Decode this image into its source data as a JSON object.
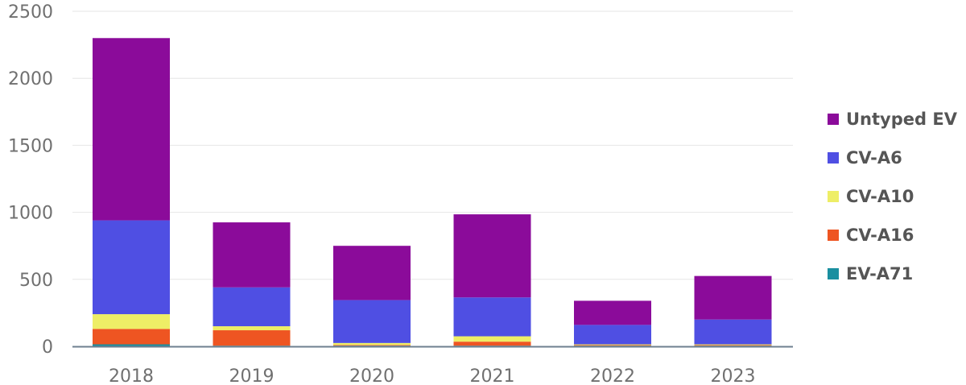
{
  "chart_data": {
    "type": "bar",
    "stacked": true,
    "categories": [
      "2018",
      "2019",
      "2020",
      "2021",
      "2022",
      "2023"
    ],
    "series": [
      {
        "name": "EV-A71",
        "color": "#1a8fa0",
        "values": [
          15,
          5,
          5,
          5,
          5,
          5
        ]
      },
      {
        "name": "CV-A16",
        "color": "#ee5522",
        "values": [
          115,
          115,
          5,
          30,
          5,
          5
        ]
      },
      {
        "name": "CV-A10",
        "color": "#eeee66",
        "values": [
          110,
          30,
          15,
          40,
          5,
          5
        ]
      },
      {
        "name": "CV-A6",
        "color": "#4f4fe3",
        "values": [
          700,
          290,
          320,
          290,
          145,
          185
        ]
      },
      {
        "name": "Untyped EV",
        "color": "#8b0b9a",
        "values": [
          1360,
          485,
          405,
          620,
          180,
          325
        ]
      }
    ],
    "yticks": [
      "0",
      "500",
      "1000",
      "1500",
      "2000",
      "2500"
    ],
    "ylim": [
      0,
      2500
    ],
    "grid": true,
    "legend_position": "right",
    "legend_order": [
      "Untyped EV",
      "CV-A6",
      "CV-A10",
      "CV-A16",
      "EV-A71"
    ],
    "title": "",
    "xlabel": "",
    "ylabel": ""
  }
}
